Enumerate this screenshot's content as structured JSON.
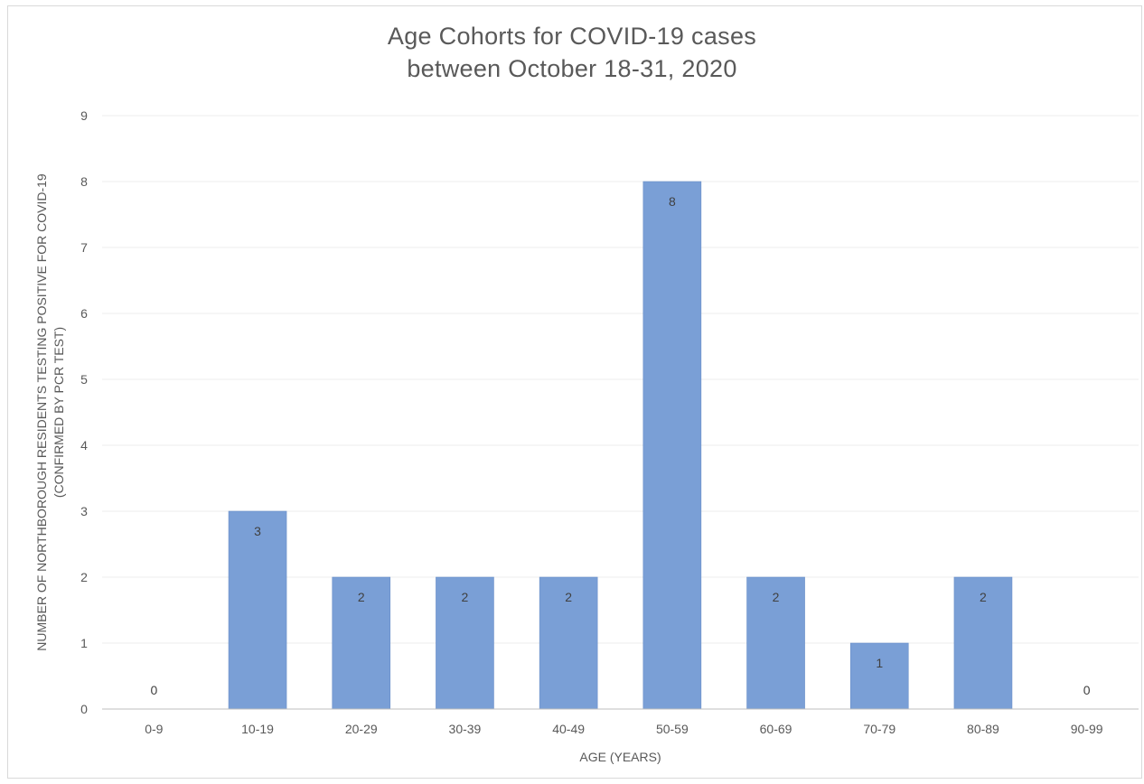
{
  "chart_data": {
    "type": "bar",
    "title_line1": "Age Cohorts for COVID-19 cases",
    "title_line2": "between October 18-31, 2020",
    "xlabel": "AGE (YEARS)",
    "ylabel_line1": "NUMBER OF NORTHBOROUGH RESIDENTS TESTING POSITIVE FOR COVID-19",
    "ylabel_line2": "(CONFIRMED BY PCR TEST)",
    "categories": [
      "0-9",
      "10-19",
      "20-29",
      "30-39",
      "40-49",
      "50-59",
      "60-69",
      "70-79",
      "80-89",
      "90-99"
    ],
    "values": [
      0,
      3,
      2,
      2,
      2,
      8,
      2,
      1,
      2,
      0
    ],
    "ylim": [
      0,
      9
    ],
    "yticks": [
      0,
      1,
      2,
      3,
      4,
      5,
      6,
      7,
      8,
      9
    ],
    "data_labels": true,
    "grid": true,
    "legend": "none",
    "bar_color": "#7a9fd6",
    "bar_edge_color": "#6a8fc8"
  }
}
